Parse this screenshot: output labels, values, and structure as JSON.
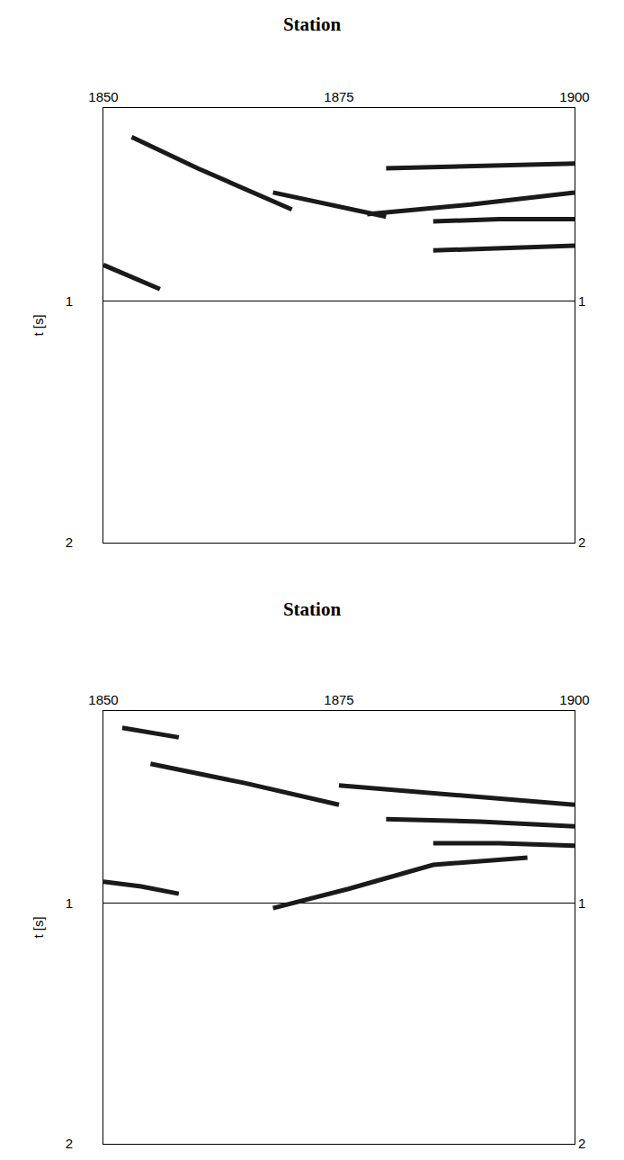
{
  "chart_data": [
    {
      "type": "line",
      "title": "Station",
      "y_label": "t [s]",
      "xlim": [
        1850,
        1900
      ],
      "xticks": [
        1850,
        1875,
        1900
      ],
      "ylim": [
        2,
        0.2
      ],
      "yticks": [
        1,
        2
      ],
      "grid": true,
      "color": "#1a1a1a",
      "series": [
        {
          "x": [
            1853,
            1860,
            1870
          ],
          "values": [
            0.32,
            0.45,
            0.62
          ]
        },
        {
          "x": [
            1868,
            1874,
            1880
          ],
          "values": [
            0.55,
            0.6,
            0.65
          ]
        },
        {
          "x": [
            1878,
            1889,
            1900
          ],
          "values": [
            0.64,
            0.6,
            0.55
          ]
        },
        {
          "x": [
            1885,
            1892,
            1900
          ],
          "values": [
            0.67,
            0.66,
            0.66
          ]
        },
        {
          "x": [
            1885,
            1892,
            1900
          ],
          "values": [
            0.79,
            0.78,
            0.77
          ]
        },
        {
          "x": [
            1850,
            1853,
            1856
          ],
          "values": [
            0.85,
            0.9,
            0.95
          ]
        },
        {
          "x": [
            1880,
            1890,
            1900
          ],
          "values": [
            0.45,
            0.44,
            0.43
          ]
        }
      ]
    },
    {
      "type": "line",
      "title": "Station",
      "y_label": "t [s]",
      "xlim": [
        1850,
        1900
      ],
      "xticks": [
        1850,
        1875,
        1900
      ],
      "ylim": [
        2,
        0.2
      ],
      "yticks": [
        1,
        2
      ],
      "grid": true,
      "color": "#1a1a1a",
      "series": [
        {
          "x": [
            1852,
            1855,
            1858
          ],
          "values": [
            0.27,
            0.29,
            0.31
          ]
        },
        {
          "x": [
            1855,
            1865,
            1875
          ],
          "values": [
            0.42,
            0.5,
            0.59
          ]
        },
        {
          "x": [
            1875,
            1888,
            1900
          ],
          "values": [
            0.51,
            0.55,
            0.59
          ]
        },
        {
          "x": [
            1880,
            1890,
            1900
          ],
          "values": [
            0.65,
            0.66,
            0.68
          ]
        },
        {
          "x": [
            1885,
            1892,
            1900
          ],
          "values": [
            0.75,
            0.75,
            0.76
          ]
        },
        {
          "x": [
            1868,
            1876,
            1885,
            1895
          ],
          "values": [
            1.02,
            0.94,
            0.84,
            0.81
          ]
        },
        {
          "x": [
            1850,
            1854,
            1858
          ],
          "values": [
            0.91,
            0.93,
            0.96
          ]
        }
      ]
    }
  ]
}
